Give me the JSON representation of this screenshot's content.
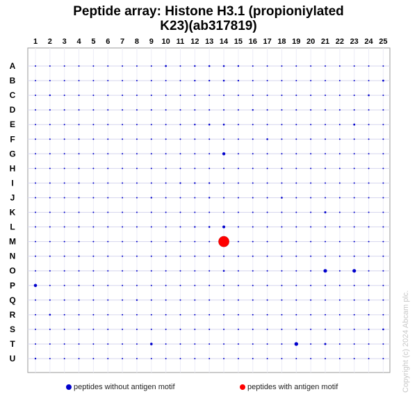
{
  "chart_data": {
    "type": "scatter",
    "title_line1": "Peptide array:  Histone H3.1 (propioniylated",
    "title_line2": "K23)(ab317819)",
    "columns": [
      "1",
      "2",
      "3",
      "4",
      "5",
      "6",
      "7",
      "8",
      "9",
      "10",
      "11",
      "12",
      "13",
      "14",
      "15",
      "16",
      "17",
      "18",
      "19",
      "20",
      "21",
      "22",
      "23",
      "24",
      "25"
    ],
    "rows": [
      "A",
      "B",
      "C",
      "D",
      "E",
      "F",
      "G",
      "H",
      "I",
      "J",
      "K",
      "L",
      "M",
      "N",
      "O",
      "P",
      "Q",
      "R",
      "S",
      "T",
      "U"
    ],
    "grid": true,
    "legend_position": "bottom",
    "series": [
      {
        "name": "peptides without antigen motif",
        "color": "#0000cc",
        "points": [
          {
            "row": "A",
            "col": 10,
            "size": 1.4
          },
          {
            "row": "A",
            "col": 12,
            "size": 1.2
          },
          {
            "row": "A",
            "col": 13,
            "size": 1.3
          },
          {
            "row": "A",
            "col": 14,
            "size": 1.3
          },
          {
            "row": "A",
            "col": 15,
            "size": 1.2
          },
          {
            "row": "B",
            "col": 12,
            "size": 1.2
          },
          {
            "row": "B",
            "col": 13,
            "size": 1.2
          },
          {
            "row": "B",
            "col": 14,
            "size": 1.3
          },
          {
            "row": "B",
            "col": 15,
            "size": 1.2
          },
          {
            "row": "B",
            "col": 25,
            "size": 1.4
          },
          {
            "row": "C",
            "col": 2,
            "size": 1.2
          },
          {
            "row": "C",
            "col": 24,
            "size": 1.3
          },
          {
            "row": "D",
            "col": 16,
            "size": 1.2
          },
          {
            "row": "E",
            "col": 12,
            "size": 1.2
          },
          {
            "row": "E",
            "col": 13,
            "size": 1.3
          },
          {
            "row": "E",
            "col": 14,
            "size": 1.3
          },
          {
            "row": "E",
            "col": 23,
            "size": 1.4
          },
          {
            "row": "F",
            "col": 17,
            "size": 1.3
          },
          {
            "row": "G",
            "col": 14,
            "size": 2.2
          },
          {
            "row": "I",
            "col": 11,
            "size": 1.2
          },
          {
            "row": "I",
            "col": 12,
            "size": 1.2
          },
          {
            "row": "I",
            "col": 13,
            "size": 1.2
          },
          {
            "row": "J",
            "col": 9,
            "size": 1.2
          },
          {
            "row": "J",
            "col": 13,
            "size": 1.2
          },
          {
            "row": "J",
            "col": 18,
            "size": 1.3
          },
          {
            "row": "K",
            "col": 21,
            "size": 1.5
          },
          {
            "row": "L",
            "col": 14,
            "size": 2.0
          },
          {
            "row": "L",
            "col": 13,
            "size": 1.3
          },
          {
            "row": "L",
            "col": 12,
            "size": 1.2
          },
          {
            "row": "O",
            "col": 21,
            "size": 2.6
          },
          {
            "row": "O",
            "col": 23,
            "size": 2.6
          },
          {
            "row": "O",
            "col": 14,
            "size": 1.3
          },
          {
            "row": "P",
            "col": 1,
            "size": 2.3
          },
          {
            "row": "Q",
            "col": 8,
            "size": 1.2
          },
          {
            "row": "R",
            "col": 2,
            "size": 1.3
          },
          {
            "row": "S",
            "col": 25,
            "size": 1.3
          },
          {
            "row": "T",
            "col": 9,
            "size": 1.8
          },
          {
            "row": "T",
            "col": 19,
            "size": 2.7
          },
          {
            "row": "T",
            "col": 21,
            "size": 1.5
          },
          {
            "row": "U",
            "col": 1,
            "size": 1.2
          }
        ],
        "default_size": 1.0
      },
      {
        "name": "peptides with antigen motif",
        "color": "#ff0000",
        "points": [
          {
            "row": "M",
            "col": 14,
            "size": 7.5
          }
        ]
      }
    ]
  },
  "copyright": "Copyright (c) 2024 Abcam plc."
}
